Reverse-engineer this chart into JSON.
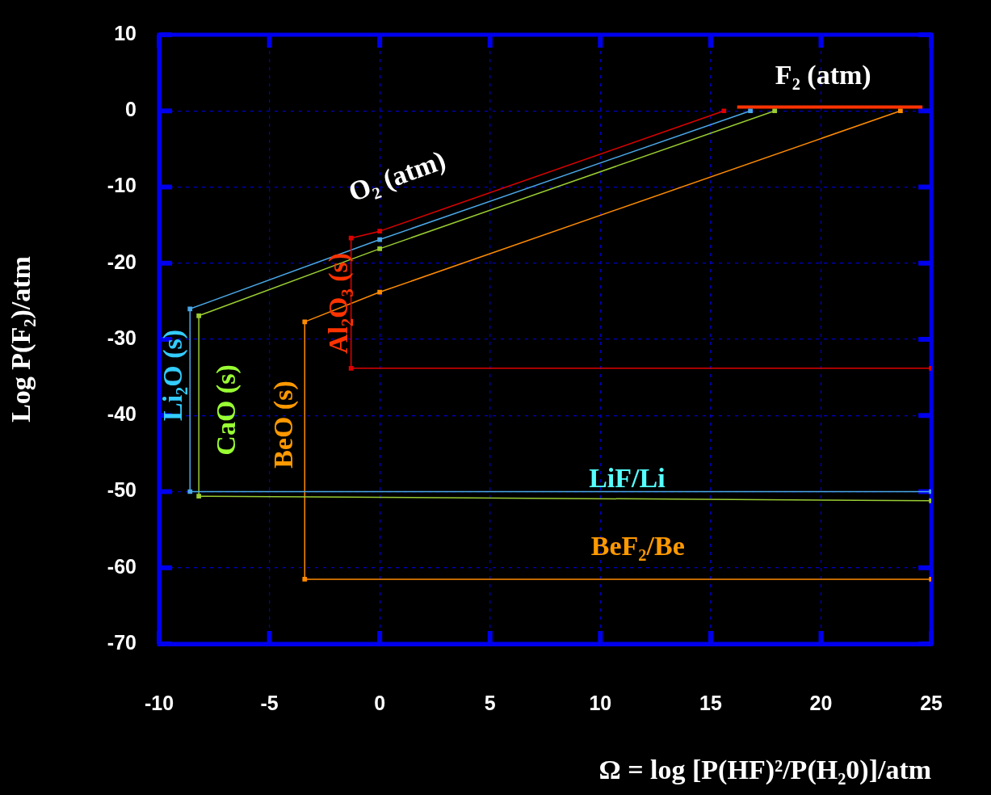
{
  "chart_data": {
    "type": "line",
    "xlabel": "Ω = log [P(HF)²/P(H₂0)]/atm",
    "ylabel": "Log P(F₂)/atm",
    "xlim": [
      -10,
      25
    ],
    "ylim": [
      -70,
      10
    ],
    "xticks": [
      -10,
      -5,
      0,
      5,
      10,
      15,
      20,
      25
    ],
    "yticks": [
      -70,
      -60,
      -50,
      -40,
      -30,
      -20,
      -10,
      0,
      10
    ],
    "grid": true,
    "legend": false,
    "marker": "square",
    "line_style": "solid",
    "series": [
      {
        "color": "#e00000",
        "x": [
          25,
          -1.3,
          -1.3,
          0,
          15.6
        ],
        "values": [
          -33.8,
          -33.8,
          -16.7,
          -15.8,
          0
        ]
      },
      {
        "color": "#4aa8e8",
        "x": [
          25,
          -8.6,
          -8.6,
          0,
          16.8
        ],
        "values": [
          -50,
          -50,
          -26,
          -16.9,
          0
        ]
      },
      {
        "color": "#9acd32",
        "x": [
          25,
          -8.2,
          -8.2,
          0,
          17.9
        ],
        "values": [
          -51.2,
          -50.6,
          -26.9,
          -18.1,
          0
        ]
      },
      {
        "color": "#ff8c00",
        "x": [
          25,
          -3.4,
          -3.4,
          0,
          23.6
        ],
        "values": [
          -61.5,
          -61.5,
          -27.7,
          -23.8,
          0
        ]
      },
      {
        "color": "#ff3300",
        "x": [
          16.2,
          24.6
        ],
        "values": [
          0.5,
          0.5
        ],
        "marker": "none"
      }
    ],
    "annotations": [
      "F₂ (atm)",
      "O₂ (atm)",
      "Li₂O (s)",
      "CaO (s)",
      "BeO (s)",
      "Al₂O₃ (s)",
      "LiF/Li",
      "BeF₂/Be"
    ]
  }
}
